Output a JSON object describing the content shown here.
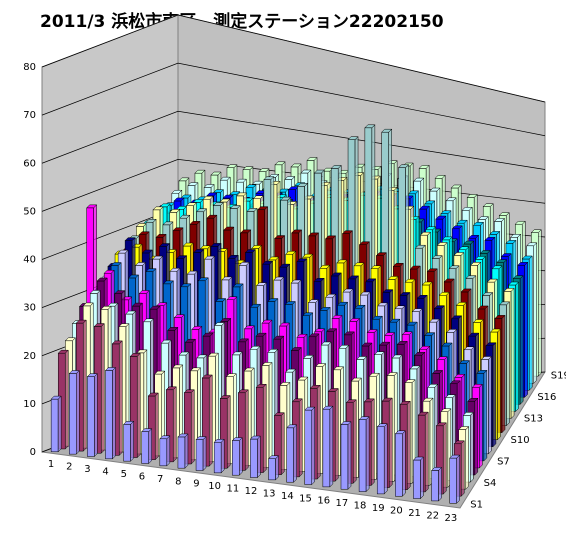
{
  "chart_data": {
    "type": "bar3d",
    "title": "2011/3 浜松市南区　測定ステーション22202150",
    "categories": [
      "1",
      "2",
      "3",
      "4",
      "5",
      "6",
      "7",
      "8",
      "9",
      "10",
      "11",
      "12",
      "13",
      "14",
      "15",
      "16",
      "17",
      "18",
      "19",
      "20",
      "21",
      "22",
      "23"
    ],
    "ylim": [
      0,
      80
    ],
    "yticks": [
      0,
      10,
      20,
      30,
      40,
      50,
      60,
      70,
      80
    ],
    "grid": true,
    "series": [
      {
        "name": "S1",
        "color": "#9999ff",
        "values": [
          11,
          17,
          17,
          19,
          8,
          7,
          6,
          7,
          7,
          7,
          8,
          9,
          5,
          13,
          18,
          19,
          16,
          18,
          17,
          16,
          10,
          8,
          12
        ]
      },
      {
        "name": null,
        "color": "#993366",
        "values": [
          20,
          27,
          27,
          24,
          22,
          14,
          16,
          16,
          20,
          16,
          18,
          20,
          14,
          18,
          22,
          22,
          20,
          21,
          22,
          22,
          20,
          18,
          14
        ]
      },
      {
        "name": null,
        "color": "#ffffcc",
        "values": [
          22,
          30,
          30,
          27,
          22,
          18,
          20,
          20,
          24,
          20,
          22,
          24,
          20,
          22,
          26,
          26,
          24,
          26,
          27,
          26,
          22,
          20,
          16
        ]
      },
      {
        "name": "S4",
        "color": "#ccffff",
        "values": [
          25,
          32,
          30,
          29,
          28,
          24,
          22,
          22,
          30,
          24,
          26,
          26,
          22,
          26,
          30,
          30,
          28,
          30,
          30,
          28,
          24,
          22,
          18
        ]
      },
      {
        "name": null,
        "color": "#660066",
        "values": [
          28,
          34,
          32,
          30,
          30,
          26,
          24,
          26,
          30,
          26,
          28,
          28,
          26,
          30,
          32,
          32,
          30,
          31,
          32,
          30,
          26,
          24,
          20
        ]
      },
      {
        "name": null,
        "color": "#ff00ff",
        "values": [
          48,
          35,
          30,
          32,
          30,
          28,
          26,
          26,
          34,
          28,
          30,
          30,
          28,
          30,
          34,
          34,
          32,
          32,
          33,
          30,
          28,
          24,
          22
        ]
      },
      {
        "name": "S7",
        "color": "#0066cc",
        "values": [
          30,
          36,
          34,
          36,
          34,
          34,
          36,
          32,
          36,
          32,
          34,
          34,
          32,
          34,
          36,
          36,
          34,
          34,
          34,
          32,
          30,
          26,
          24
        ]
      },
      {
        "name": null,
        "color": "#ccccff",
        "values": [
          32,
          38,
          36,
          38,
          36,
          36,
          40,
          36,
          40,
          36,
          38,
          38,
          34,
          36,
          38,
          38,
          36,
          36,
          36,
          34,
          32,
          28,
          26
        ]
      },
      {
        "name": null,
        "color": "#000080",
        "values": [
          34,
          40,
          38,
          40,
          38,
          40,
          42,
          40,
          42,
          40,
          40,
          42,
          38,
          40,
          40,
          40,
          38,
          38,
          38,
          36,
          34,
          30,
          28
        ]
      },
      {
        "name": "S10",
        "color": "#ffff00",
        "values": [
          36,
          38,
          36,
          38,
          40,
          40,
          40,
          38,
          42,
          40,
          42,
          42,
          40,
          42,
          42,
          42,
          40,
          40,
          40,
          38,
          36,
          32,
          30
        ]
      },
      {
        "name": null,
        "color": "#800000",
        "values": [
          36,
          40,
          40,
          42,
          44,
          46,
          44,
          44,
          50,
          44,
          46,
          46,
          46,
          48,
          46,
          44,
          42,
          42,
          42,
          40,
          38,
          34,
          32
        ]
      },
      {
        "name": null,
        "color": "#99cccc",
        "values": [
          38,
          42,
          42,
          44,
          46,
          48,
          48,
          48,
          56,
          52,
          56,
          60,
          62,
          70,
          74,
          74,
          66,
          46,
          44,
          42,
          40,
          36,
          34
        ]
      },
      {
        "name": "S13",
        "color": "#ffffaa",
        "values": [
          40,
          44,
          44,
          46,
          48,
          48,
          50,
          50,
          54,
          50,
          52,
          56,
          58,
          60,
          60,
          58,
          54,
          48,
          46,
          44,
          42,
          38,
          36
        ]
      },
      {
        "name": null,
        "color": "#00ffff",
        "values": [
          40,
          44,
          44,
          46,
          46,
          46,
          48,
          48,
          50,
          48,
          50,
          52,
          52,
          54,
          54,
          52,
          50,
          48,
          46,
          44,
          42,
          40,
          36
        ]
      },
      {
        "name": null,
        "color": "#008080",
        "values": [
          40,
          42,
          42,
          44,
          44,
          44,
          46,
          46,
          48,
          46,
          48,
          48,
          48,
          50,
          50,
          50,
          48,
          46,
          44,
          44,
          42,
          40,
          36
        ]
      },
      {
        "name": "S16",
        "color": "#0000ff",
        "values": [
          42,
          44,
          44,
          46,
          46,
          46,
          48,
          48,
          50,
          48,
          48,
          50,
          50,
          52,
          52,
          52,
          50,
          48,
          46,
          44,
          44,
          40,
          38
        ]
      },
      {
        "name": null,
        "color": "#00ccff",
        "values": [
          42,
          44,
          44,
          46,
          46,
          48,
          48,
          48,
          50,
          48,
          50,
          50,
          50,
          52,
          52,
          52,
          50,
          48,
          46,
          46,
          44,
          42,
          38
        ]
      },
      {
        "name": null,
        "color": "#ccffff",
        "values": [
          44,
          46,
          46,
          48,
          48,
          48,
          50,
          50,
          52,
          50,
          50,
          52,
          52,
          54,
          54,
          54,
          52,
          50,
          48,
          46,
          46,
          42,
          40
        ]
      },
      {
        "name": "S19",
        "color": "#ccffcc",
        "values": [
          46,
          48,
          48,
          50,
          50,
          50,
          52,
          52,
          54,
          52,
          52,
          54,
          54,
          56,
          56,
          56,
          54,
          52,
          50,
          48,
          46,
          44,
          42
        ]
      }
    ]
  }
}
